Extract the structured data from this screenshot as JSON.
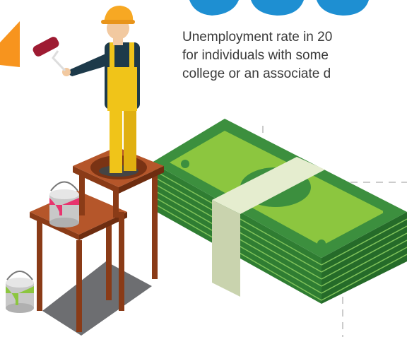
{
  "text": {
    "lines": [
      "Unemployment rate in 20",
      "for individuals with some",
      "college or an associate d"
    ]
  }
}
